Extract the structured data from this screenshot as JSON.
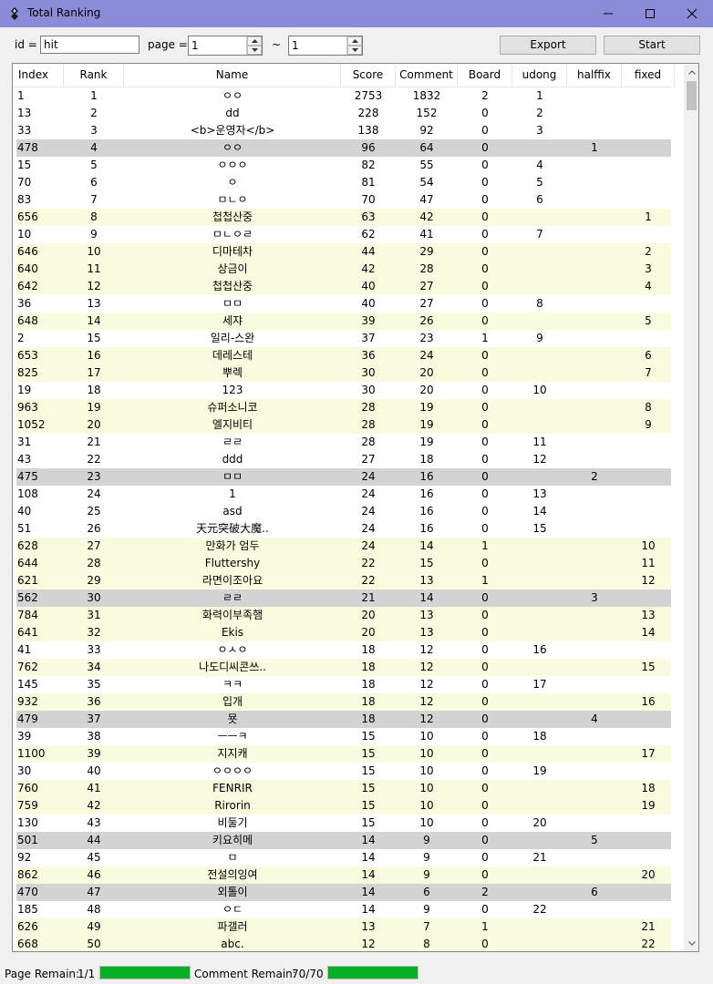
{
  "window": {
    "title": "Total Ranking"
  },
  "toolbar": {
    "id_label": "id =",
    "id_value": "hit",
    "page_label": "page =",
    "page_from": "1",
    "tilde": "~",
    "page_to": "1",
    "export_label": "Export",
    "start_label": "Start"
  },
  "table": {
    "columns": [
      "Index",
      "Rank",
      "Name",
      "Score",
      "Comment",
      "Board",
      "udong",
      "halffix",
      "fixed"
    ],
    "rows": [
      {
        "style": "",
        "cells": [
          "1",
          "1",
          "ㅇㅇ",
          "2753",
          "1832",
          "2",
          "1",
          "",
          ""
        ]
      },
      {
        "style": "",
        "cells": [
          "13",
          "2",
          "dd",
          "228",
          "152",
          "0",
          "2",
          "",
          ""
        ]
      },
      {
        "style": "",
        "cells": [
          "33",
          "3",
          "<b>운영자</b>",
          "138",
          "92",
          "0",
          "3",
          "",
          ""
        ]
      },
      {
        "style": "g",
        "cells": [
          "478",
          "4",
          "ㅇㅇ",
          "96",
          "64",
          "0",
          "",
          "1",
          ""
        ]
      },
      {
        "style": "",
        "cells": [
          "15",
          "5",
          "ㅇㅇㅇ",
          "82",
          "55",
          "0",
          "4",
          "",
          ""
        ]
      },
      {
        "style": "",
        "cells": [
          "70",
          "6",
          "ㅇ",
          "81",
          "54",
          "0",
          "5",
          "",
          ""
        ]
      },
      {
        "style": "",
        "cells": [
          "83",
          "7",
          "ㅁㄴㅇ",
          "70",
          "47",
          "0",
          "6",
          "",
          ""
        ]
      },
      {
        "style": "y",
        "cells": [
          "656",
          "8",
          "첩첩산중",
          "63",
          "42",
          "0",
          "",
          "",
          "1"
        ]
      },
      {
        "style": "",
        "cells": [
          "10",
          "9",
          "ㅁㄴㅇㄹ",
          "62",
          "41",
          "0",
          "7",
          "",
          ""
        ]
      },
      {
        "style": "y",
        "cells": [
          "646",
          "10",
          "디마테차",
          "44",
          "29",
          "0",
          "",
          "",
          "2"
        ]
      },
      {
        "style": "y",
        "cells": [
          "640",
          "11",
          "상금이",
          "42",
          "28",
          "0",
          "",
          "",
          "3"
        ]
      },
      {
        "style": "y",
        "cells": [
          "642",
          "12",
          "첩첩산중",
          "40",
          "27",
          "0",
          "",
          "",
          "4"
        ]
      },
      {
        "style": "",
        "cells": [
          "36",
          "13",
          "ㅁㅁ",
          "40",
          "27",
          "0",
          "8",
          "",
          ""
        ]
      },
      {
        "style": "y",
        "cells": [
          "648",
          "14",
          "세쟈",
          "39",
          "26",
          "0",
          "",
          "",
          "5"
        ]
      },
      {
        "style": "",
        "cells": [
          "2",
          "15",
          "일리-스완",
          "37",
          "23",
          "1",
          "9",
          "",
          ""
        ]
      },
      {
        "style": "y",
        "cells": [
          "653",
          "16",
          "데레스테",
          "36",
          "24",
          "0",
          "",
          "",
          "6"
        ]
      },
      {
        "style": "y",
        "cells": [
          "825",
          "17",
          "뿌렉",
          "30",
          "20",
          "0",
          "",
          "",
          "7"
        ]
      },
      {
        "style": "",
        "cells": [
          "19",
          "18",
          "123",
          "30",
          "20",
          "0",
          "10",
          "",
          ""
        ]
      },
      {
        "style": "y",
        "cells": [
          "963",
          "19",
          "슈퍼소니코",
          "28",
          "19",
          "0",
          "",
          "",
          "8"
        ]
      },
      {
        "style": "y",
        "cells": [
          "1052",
          "20",
          "엘지비티",
          "28",
          "19",
          "0",
          "",
          "",
          "9"
        ]
      },
      {
        "style": "",
        "cells": [
          "31",
          "21",
          "ㄹㄹ",
          "28",
          "19",
          "0",
          "11",
          "",
          ""
        ]
      },
      {
        "style": "",
        "cells": [
          "43",
          "22",
          "ddd",
          "27",
          "18",
          "0",
          "12",
          "",
          ""
        ]
      },
      {
        "style": "g",
        "cells": [
          "475",
          "23",
          "ㅁㅁ",
          "24",
          "16",
          "0",
          "",
          "2",
          ""
        ]
      },
      {
        "style": "",
        "cells": [
          "108",
          "24",
          "1",
          "24",
          "16",
          "0",
          "13",
          "",
          ""
        ]
      },
      {
        "style": "",
        "cells": [
          "40",
          "25",
          "asd",
          "24",
          "16",
          "0",
          "14",
          "",
          ""
        ]
      },
      {
        "style": "",
        "cells": [
          "51",
          "26",
          "天元突破大魔..",
          "24",
          "16",
          "0",
          "15",
          "",
          ""
        ]
      },
      {
        "style": "y",
        "cells": [
          "628",
          "27",
          "만화가 엄두",
          "24",
          "14",
          "1",
          "",
          "",
          "10"
        ]
      },
      {
        "style": "y",
        "cells": [
          "644",
          "28",
          "Fluttershy",
          "22",
          "15",
          "0",
          "",
          "",
          "11"
        ]
      },
      {
        "style": "y",
        "cells": [
          "621",
          "29",
          "라면이조아요",
          "22",
          "13",
          "1",
          "",
          "",
          "12"
        ]
      },
      {
        "style": "g",
        "cells": [
          "562",
          "30",
          "ㄹㄹ",
          "21",
          "14",
          "0",
          "",
          "3",
          ""
        ]
      },
      {
        "style": "y",
        "cells": [
          "784",
          "31",
          "화력이부족햄",
          "20",
          "13",
          "0",
          "",
          "",
          "13"
        ]
      },
      {
        "style": "y",
        "cells": [
          "641",
          "32",
          "Ekis",
          "20",
          "13",
          "0",
          "",
          "",
          "14"
        ]
      },
      {
        "style": "",
        "cells": [
          "41",
          "33",
          "ㅇㅅㅇ",
          "18",
          "12",
          "0",
          "16",
          "",
          ""
        ]
      },
      {
        "style": "y",
        "cells": [
          "762",
          "34",
          "나도디씨콘쓰..",
          "18",
          "12",
          "0",
          "",
          "",
          "15"
        ]
      },
      {
        "style": "",
        "cells": [
          "145",
          "35",
          "ㅋㅋ",
          "18",
          "12",
          "0",
          "17",
          "",
          ""
        ]
      },
      {
        "style": "y",
        "cells": [
          "932",
          "36",
          "입개",
          "18",
          "12",
          "0",
          "",
          "",
          "16"
        ]
      },
      {
        "style": "g",
        "cells": [
          "479",
          "37",
          "묫",
          "18",
          "12",
          "0",
          "",
          "4",
          ""
        ]
      },
      {
        "style": "",
        "cells": [
          "39",
          "38",
          "ㅡㅡㅋ",
          "15",
          "10",
          "0",
          "18",
          "",
          ""
        ]
      },
      {
        "style": "y",
        "cells": [
          "1100",
          "39",
          "지지캐",
          "15",
          "10",
          "0",
          "",
          "",
          "17"
        ]
      },
      {
        "style": "",
        "cells": [
          "30",
          "40",
          "ㅇㅇㅇㅇ",
          "15",
          "10",
          "0",
          "19",
          "",
          ""
        ]
      },
      {
        "style": "y",
        "cells": [
          "760",
          "41",
          "FENRIR",
          "15",
          "10",
          "0",
          "",
          "",
          "18"
        ]
      },
      {
        "style": "y",
        "cells": [
          "759",
          "42",
          "Rirorin",
          "15",
          "10",
          "0",
          "",
          "",
          "19"
        ]
      },
      {
        "style": "",
        "cells": [
          "130",
          "43",
          "비둘기",
          "15",
          "10",
          "0",
          "20",
          "",
          ""
        ]
      },
      {
        "style": "g",
        "cells": [
          "501",
          "44",
          "키요히메",
          "14",
          "9",
          "0",
          "",
          "5",
          ""
        ]
      },
      {
        "style": "",
        "cells": [
          "92",
          "45",
          "ㅁ",
          "14",
          "9",
          "0",
          "21",
          "",
          ""
        ]
      },
      {
        "style": "y",
        "cells": [
          "862",
          "46",
          "전설의잉여",
          "14",
          "9",
          "0",
          "",
          "",
          "20"
        ]
      },
      {
        "style": "g",
        "cells": [
          "470",
          "47",
          "외톨이",
          "14",
          "6",
          "2",
          "",
          "6",
          ""
        ]
      },
      {
        "style": "",
        "cells": [
          "185",
          "48",
          "ㅇㄷ",
          "14",
          "9",
          "0",
          "22",
          "",
          ""
        ]
      },
      {
        "style": "y",
        "cells": [
          "626",
          "49",
          "파갤러",
          "13",
          "7",
          "1",
          "",
          "",
          "21"
        ]
      },
      {
        "style": "y",
        "cells": [
          "668",
          "50",
          "abc.",
          "12",
          "8",
          "0",
          "",
          "",
          "22"
        ]
      }
    ]
  },
  "status": {
    "page_remain_label": "Page Remain:",
    "page_remain_value": "1/1",
    "page_progress": 1.0,
    "comment_remain_label": "Comment Remain:",
    "comment_remain_value": "70/70",
    "comment_progress": 1.0,
    "progress_color": "#06b025"
  },
  "colors": {
    "titlebar": "#8a8cd8",
    "row_yellow": "#fafade",
    "row_gray": "#d3d3d3"
  }
}
